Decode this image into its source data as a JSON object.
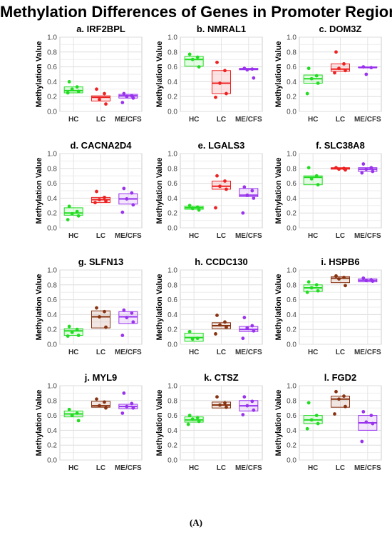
{
  "title": "Methylation Differences of Genes in Promoter Regions",
  "caption": "(A)",
  "chart_data": [
    {
      "type": "box",
      "title": "a. IRF2BPL",
      "ylabel": "Methylation Value",
      "ylim": [
        0,
        1
      ],
      "yticks": [
        "0.0",
        "0.2",
        "0.4",
        "0.6",
        "0.8",
        "1.0"
      ],
      "categories": [
        "HC",
        "LC",
        "ME/CFS"
      ],
      "series": [
        {
          "color": "#22dd22",
          "box": {
            "q1": 0.25,
            "median": 0.28,
            "q3": 0.33
          },
          "points": [
            0.4,
            0.33,
            0.3,
            0.27,
            0.25
          ]
        },
        {
          "color": "#ee2222",
          "box": {
            "q1": 0.14,
            "median": 0.19,
            "q3": 0.21
          },
          "points": [
            0.3,
            0.24,
            0.16,
            0.1
          ]
        },
        {
          "color": "#9933ee",
          "box": {
            "q1": 0.18,
            "median": 0.21,
            "q3": 0.23
          },
          "points": [
            0.24,
            0.21,
            0.2,
            0.18,
            0.12
          ]
        }
      ]
    },
    {
      "type": "box",
      "title": "b. NMRAL1",
      "ylabel": "Methylation Value",
      "ylim": [
        0,
        1
      ],
      "yticks": [
        "0.0",
        "0.2",
        "0.4",
        "0.6",
        "0.8",
        "1.0"
      ],
      "categories": [
        "HC",
        "LC",
        "ME/CFS"
      ],
      "series": [
        {
          "color": "#22dd22",
          "box": {
            "q1": 0.61,
            "median": 0.7,
            "q3": 0.74
          },
          "points": [
            0.77,
            0.73,
            0.7,
            0.6
          ]
        },
        {
          "color": "#ee2222",
          "box": {
            "q1": 0.24,
            "median": 0.38,
            "q3": 0.55
          },
          "points": [
            0.66,
            0.55,
            0.38,
            0.24,
            0.19
          ]
        },
        {
          "color": "#9933ee",
          "box": {
            "q1": 0.56,
            "median": 0.57,
            "q3": 0.58
          },
          "points": [
            0.58,
            0.57,
            0.56,
            0.45
          ]
        }
      ]
    },
    {
      "type": "box",
      "title": "c. DOM3Z",
      "ylabel": "Methylation Value",
      "ylim": [
        0,
        1
      ],
      "yticks": [
        "0.0",
        "0.2",
        "0.4",
        "0.6",
        "0.8",
        "1.0"
      ],
      "categories": [
        "HC",
        "LC",
        "ME/CFS"
      ],
      "series": [
        {
          "color": "#22dd22",
          "box": {
            "q1": 0.38,
            "median": 0.44,
            "q3": 0.49
          },
          "points": [
            0.58,
            0.48,
            0.44,
            0.38,
            0.24
          ]
        },
        {
          "color": "#ee2222",
          "box": {
            "q1": 0.54,
            "median": 0.57,
            "q3": 0.64
          },
          "points": [
            0.8,
            0.64,
            0.58,
            0.55,
            0.52
          ]
        },
        {
          "color": "#9933ee",
          "box": {
            "q1": 0.59,
            "median": 0.59,
            "q3": 0.6
          },
          "points": [
            0.6,
            0.59,
            0.5
          ]
        }
      ]
    },
    {
      "type": "box",
      "title": "d. CACNA2D4",
      "ylabel": "Methylation Value",
      "ylim": [
        0,
        1
      ],
      "yticks": [
        "0.0",
        "0.2",
        "0.4",
        "0.6",
        "0.8",
        "1.0"
      ],
      "categories": [
        "HC",
        "LC",
        "ME/CFS"
      ],
      "series": [
        {
          "color": "#22dd22",
          "box": {
            "q1": 0.17,
            "median": 0.2,
            "q3": 0.27
          },
          "points": [
            0.29,
            0.22,
            0.19,
            0.16,
            0.11
          ]
        },
        {
          "color": "#ee2222",
          "box": {
            "q1": 0.34,
            "median": 0.38,
            "q3": 0.41
          },
          "points": [
            0.49,
            0.41,
            0.38,
            0.36,
            0.34
          ]
        },
        {
          "color": "#9933ee",
          "box": {
            "q1": 0.32,
            "median": 0.39,
            "q3": 0.46
          },
          "points": [
            0.53,
            0.47,
            0.39,
            0.31,
            0.21
          ]
        }
      ]
    },
    {
      "type": "box",
      "title": "e. LGALS3",
      "ylabel": "Methylation Value",
      "ylim": [
        0,
        1
      ],
      "yticks": [
        "0.0",
        "0.2",
        "0.4",
        "0.6",
        "0.8",
        "1.0"
      ],
      "categories": [
        "HC",
        "LC",
        "ME/CFS"
      ],
      "series": [
        {
          "color": "#22dd22",
          "box": {
            "q1": 0.25,
            "median": 0.27,
            "q3": 0.29
          },
          "points": [
            0.3,
            0.28,
            0.26,
            0.24
          ]
        },
        {
          "color": "#ee2222",
          "box": {
            "q1": 0.52,
            "median": 0.56,
            "q3": 0.63
          },
          "points": [
            0.7,
            0.63,
            0.56,
            0.52,
            0.27
          ]
        },
        {
          "color": "#9933ee",
          "box": {
            "q1": 0.42,
            "median": 0.44,
            "q3": 0.53
          },
          "points": [
            0.55,
            0.5,
            0.44,
            0.4,
            0.2
          ]
        }
      ]
    },
    {
      "type": "box",
      "title": "f. SLC38A8",
      "ylabel": "Methylation Value",
      "ylim": [
        0,
        1
      ],
      "yticks": [
        "0.0",
        "0.2",
        "0.4",
        "0.6",
        "0.8",
        "1.0"
      ],
      "categories": [
        "HC",
        "LC",
        "ME/CFS"
      ],
      "series": [
        {
          "color": "#22dd22",
          "box": {
            "q1": 0.58,
            "median": 0.68,
            "q3": 0.7
          },
          "points": [
            0.81,
            0.7,
            0.66,
            0.58
          ]
        },
        {
          "color": "#ee2222",
          "box": {
            "q1": 0.79,
            "median": 0.8,
            "q3": 0.81
          },
          "points": [
            0.81,
            0.8,
            0.79,
            0.78
          ]
        },
        {
          "color": "#9933ee",
          "box": {
            "q1": 0.76,
            "median": 0.79,
            "q3": 0.81
          },
          "points": [
            0.86,
            0.81,
            0.79,
            0.76,
            0.74
          ]
        }
      ]
    },
    {
      "type": "box",
      "title": "g. SLFN13",
      "ylabel": "Methylation Value",
      "ylim": [
        0,
        1
      ],
      "yticks": [
        "0.0",
        "0.2",
        "0.4",
        "0.6",
        "0.8",
        "1.0"
      ],
      "categories": [
        "HC",
        "LC",
        "ME/CFS"
      ],
      "series": [
        {
          "color": "#22dd22",
          "box": {
            "q1": 0.12,
            "median": 0.18,
            "q3": 0.21
          },
          "points": [
            0.24,
            0.2,
            0.16,
            0.12,
            0.11
          ]
        },
        {
          "color": "#883311",
          "box": {
            "q1": 0.22,
            "median": 0.37,
            "q3": 0.45
          },
          "points": [
            0.49,
            0.44,
            0.37,
            0.23
          ]
        },
        {
          "color": "#9933ee",
          "box": {
            "q1": 0.28,
            "median": 0.37,
            "q3": 0.44
          },
          "points": [
            0.46,
            0.42,
            0.36,
            0.3,
            0.12
          ]
        }
      ]
    },
    {
      "type": "box",
      "title": "h. CCDC130",
      "ylabel": "Methylation Value",
      "ylim": [
        0,
        1
      ],
      "yticks": [
        "0.0",
        "0.2",
        "0.4",
        "0.6",
        "0.8",
        "1.0"
      ],
      "categories": [
        "HC",
        "LC",
        "ME/CFS"
      ],
      "series": [
        {
          "color": "#22dd22",
          "box": {
            "q1": 0.04,
            "median": 0.09,
            "q3": 0.15
          },
          "points": [
            0.17,
            0.08,
            0.07
          ]
        },
        {
          "color": "#883311",
          "box": {
            "q1": 0.21,
            "median": 0.25,
            "q3": 0.29
          },
          "points": [
            0.39,
            0.3,
            0.26,
            0.23,
            0.14
          ]
        },
        {
          "color": "#9933ee",
          "box": {
            "q1": 0.17,
            "median": 0.2,
            "q3": 0.24
          },
          "points": [
            0.36,
            0.25,
            0.22,
            0.18,
            0.08
          ]
        }
      ]
    },
    {
      "type": "box",
      "title": "i. HSPB6",
      "ylabel": "Methylation Value",
      "ylim": [
        0,
        1
      ],
      "yticks": [
        "0.0",
        "0.2",
        "0.4",
        "0.6",
        "0.8",
        "1.0"
      ],
      "categories": [
        "HC",
        "LC",
        "ME/CFS"
      ],
      "series": [
        {
          "color": "#22dd22",
          "box": {
            "q1": 0.71,
            "median": 0.76,
            "q3": 0.8
          },
          "points": [
            0.84,
            0.8,
            0.76,
            0.72,
            0.7
          ]
        },
        {
          "color": "#883311",
          "box": {
            "q1": 0.83,
            "median": 0.89,
            "q3": 0.91
          },
          "points": [
            0.92,
            0.9,
            0.88,
            0.79
          ]
        },
        {
          "color": "#9933ee",
          "box": {
            "q1": 0.84,
            "median": 0.86,
            "q3": 0.88
          },
          "points": [
            0.89,
            0.87,
            0.86,
            0.85
          ]
        }
      ]
    },
    {
      "type": "box",
      "title": "j. MYL9",
      "ylabel": "Methylation Value",
      "ylim": [
        0,
        1
      ],
      "yticks": [
        "0.0",
        "0.2",
        "0.4",
        "0.6",
        "0.8",
        "1.0"
      ],
      "categories": [
        "HC",
        "LC",
        "ME/CFS"
      ],
      "series": [
        {
          "color": "#22dd22",
          "box": {
            "q1": 0.58,
            "median": 0.62,
            "q3": 0.66
          },
          "points": [
            0.68,
            0.63,
            0.6,
            0.53
          ]
        },
        {
          "color": "#883311",
          "box": {
            "q1": 0.71,
            "median": 0.73,
            "q3": 0.79
          },
          "points": [
            0.82,
            0.78,
            0.73,
            0.7
          ]
        },
        {
          "color": "#9933ee",
          "box": {
            "q1": 0.69,
            "median": 0.72,
            "q3": 0.75
          },
          "points": [
            0.9,
            0.76,
            0.72,
            0.7,
            0.63
          ]
        }
      ]
    },
    {
      "type": "box",
      "title": "k. CTSZ",
      "ylabel": "Methylation Value",
      "ylim": [
        0,
        1
      ],
      "yticks": [
        "0.0",
        "0.2",
        "0.4",
        "0.6",
        "0.8",
        "1.0"
      ],
      "categories": [
        "HC",
        "LC",
        "ME/CFS"
      ],
      "series": [
        {
          "color": "#22dd22",
          "box": {
            "q1": 0.51,
            "median": 0.54,
            "q3": 0.58
          },
          "points": [
            0.6,
            0.57,
            0.55,
            0.52,
            0.48
          ]
        },
        {
          "color": "#883311",
          "box": {
            "q1": 0.7,
            "median": 0.74,
            "q3": 0.78
          },
          "points": [
            0.85,
            0.77,
            0.74,
            0.71
          ]
        },
        {
          "color": "#9933ee",
          "box": {
            "q1": 0.66,
            "median": 0.73,
            "q3": 0.8
          },
          "points": [
            0.85,
            0.79,
            0.73,
            0.67,
            0.61
          ]
        }
      ]
    },
    {
      "type": "box",
      "title": "l. FGD2",
      "ylabel": "Methylation Value",
      "ylim": [
        0,
        1
      ],
      "yticks": [
        "0.0",
        "0.2",
        "0.4",
        "0.6",
        "0.8",
        "1.0"
      ],
      "categories": [
        "HC",
        "LC",
        "ME/CFS"
      ],
      "series": [
        {
          "color": "#22dd22",
          "box": {
            "q1": 0.49,
            "median": 0.54,
            "q3": 0.6
          },
          "points": [
            0.77,
            0.6,
            0.54,
            0.49,
            0.42
          ]
        },
        {
          "color": "#883311",
          "box": {
            "q1": 0.71,
            "median": 0.82,
            "q3": 0.86
          },
          "points": [
            0.92,
            0.86,
            0.82,
            0.72,
            0.62
          ]
        },
        {
          "color": "#9933ee",
          "box": {
            "q1": 0.4,
            "median": 0.5,
            "q3": 0.6
          },
          "points": [
            0.65,
            0.6,
            0.51,
            0.49,
            0.25
          ]
        }
      ]
    }
  ]
}
